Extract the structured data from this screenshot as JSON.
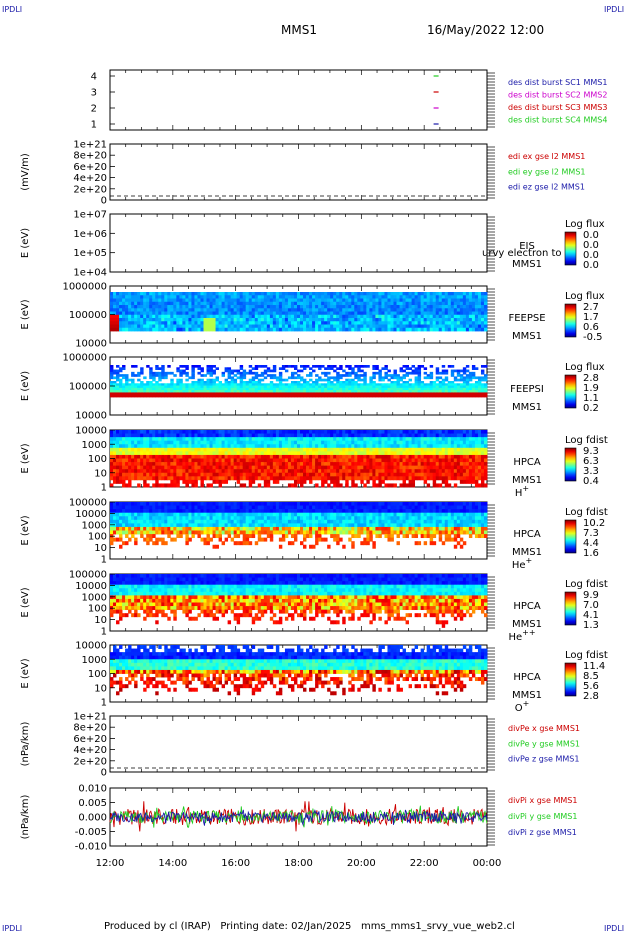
{
  "corner_label": "IPDLI",
  "header": {
    "mission": "MMS1",
    "date": "16/May/2022 12:00"
  },
  "footer": {
    "produced_by": "Produced by cl (IRAP)",
    "printing_date": "Printing date: 02/Jan/2025",
    "file": "mms_mms1_srvy_vue_web2.cl"
  },
  "colors": {
    "blue": "#1a1aa8",
    "magenta": "#cc00cc",
    "red": "#cc0000",
    "green": "#22cc22"
  },
  "chart_data": [
    {
      "type": "scatter",
      "id": "burst",
      "yticks": [
        "4",
        "3",
        "2",
        "1"
      ],
      "legend": [
        {
          "text": "des dist burst SC1 MMS1",
          "color": "#1a1aa8"
        },
        {
          "text": "des dist burst SC2 MMS2",
          "color": "#cc00cc"
        },
        {
          "text": "des dist burst SC3 MMS3",
          "color": "#cc0000"
        },
        {
          "text": "des dist burst SC4 MMS4",
          "color": "#22cc22"
        }
      ],
      "marks": [
        {
          "sc": 4,
          "time": "22:18",
          "color": "#22cc22"
        },
        {
          "sc": 3,
          "time": "22:18",
          "color": "#cc0000"
        },
        {
          "sc": 2,
          "time": "22:18",
          "color": "#cc00cc"
        },
        {
          "sc": 1,
          "time": "22:18",
          "color": "#1a1aa8"
        }
      ]
    },
    {
      "type": "line",
      "id": "edi",
      "ylabel": "(mV/m)",
      "yticks": [
        "1e+21",
        "8e+20",
        "6e+20",
        "4e+20",
        "2e+20",
        "0"
      ],
      "legend": [
        {
          "text": "edi ex gse l2 MMS1",
          "color": "#cc0000"
        },
        {
          "text": "edi ey gse l2 MMS1",
          "color": "#22cc22"
        },
        {
          "text": "edi ez gse l2 MMS1",
          "color": "#1a1aa8"
        }
      ]
    },
    {
      "type": "heatmap",
      "id": "eis",
      "ylabel": "E (eV)",
      "yticks": [
        "1e+07",
        "1e+06",
        "1e+05",
        "1e+04"
      ],
      "labels": [
        "EIS",
        "MMS1"
      ],
      "overlay": "urvy electron to",
      "cbar_title": "Log flux",
      "cbar_ticks": [
        "0.0",
        "0.0",
        "0.0",
        "0.0"
      ]
    },
    {
      "type": "heatmap",
      "id": "feepse",
      "ylabel": "E (eV)",
      "yticks": [
        "1000000",
        "100000",
        "10000"
      ],
      "labels": [
        "FEEPSE",
        "MMS1"
      ],
      "cbar_title": "Log flux",
      "cbar_ticks": [
        "2.7",
        "1.7",
        "0.6",
        "-0.5"
      ]
    },
    {
      "type": "heatmap",
      "id": "feepsi",
      "ylabel": "E (eV)",
      "yticks": [
        "1000000",
        "100000",
        "10000"
      ],
      "labels": [
        "FEEPSI",
        "MMS1"
      ],
      "cbar_title": "Log flux",
      "cbar_ticks": [
        "2.8",
        "1.9",
        "1.1",
        "0.2"
      ]
    },
    {
      "type": "heatmap",
      "id": "hpca_h",
      "ylabel": "E (eV)",
      "yticks": [
        "10000",
        "1000",
        "100",
        "10",
        "1"
      ],
      "labels": [
        "HPCA",
        "MMS1"
      ],
      "species": "H",
      "species_sup": "+",
      "cbar_title": "Log fdist",
      "cbar_ticks": [
        "9.3",
        "6.3",
        "3.3",
        "0.4"
      ]
    },
    {
      "type": "heatmap",
      "id": "hpca_he",
      "ylabel": "E (eV)",
      "yticks": [
        "100000",
        "10000",
        "1000",
        "100",
        "10",
        "1"
      ],
      "labels": [
        "HPCA",
        "MMS1"
      ],
      "species": "He",
      "species_sup": "+",
      "cbar_title": "Log fdist",
      "cbar_ticks": [
        "10.2",
        "7.3",
        "4.4",
        "1.6"
      ]
    },
    {
      "type": "heatmap",
      "id": "hpca_hepp",
      "ylabel": "E (eV)",
      "yticks": [
        "100000",
        "10000",
        "1000",
        "100",
        "10",
        "1"
      ],
      "labels": [
        "HPCA",
        "MMS1"
      ],
      "species": "He",
      "species_sup": "++",
      "cbar_title": "Log fdist",
      "cbar_ticks": [
        "9.9",
        "7.0",
        "4.1",
        "1.3"
      ]
    },
    {
      "type": "heatmap",
      "id": "hpca_o",
      "ylabel": "E (eV)",
      "yticks": [
        "10000",
        "1000",
        "100",
        "10",
        "1"
      ],
      "labels": [
        "HPCA",
        "MMS1"
      ],
      "species": "O",
      "species_sup": "+",
      "cbar_title": "Log fdist",
      "cbar_ticks": [
        "11.4",
        "8.5",
        "5.6",
        "2.8"
      ]
    },
    {
      "type": "line",
      "id": "divpe",
      "ylabel": "(nPa/km)",
      "yticks": [
        "1e+21",
        "8e+20",
        "6e+20",
        "4e+20",
        "2e+20",
        "0"
      ],
      "legend": [
        {
          "text": "divPe x gse MMS1",
          "color": "#cc0000"
        },
        {
          "text": "divPe y gse MMS1",
          "color": "#22cc22"
        },
        {
          "text": "divPe z gse MMS1",
          "color": "#1a1aa8"
        }
      ]
    },
    {
      "type": "line",
      "id": "divpi",
      "ylabel": "(nPa/km)",
      "yticks": [
        "0.010",
        "0.005",
        "0.000",
        "-0.005",
        "-0.010"
      ],
      "ylim": [
        -0.01,
        0.01
      ],
      "legend": [
        {
          "text": "divPi x gse MMS1",
          "color": "#cc0000"
        },
        {
          "text": "divPi y gse MMS1",
          "color": "#22cc22"
        },
        {
          "text": "divPi z gse MMS1",
          "color": "#1a1aa8"
        }
      ]
    }
  ],
  "time_axis": {
    "ticks": [
      "12:00",
      "14:00",
      "16:00",
      "18:00",
      "20:00",
      "22:00",
      "00:00"
    ]
  }
}
